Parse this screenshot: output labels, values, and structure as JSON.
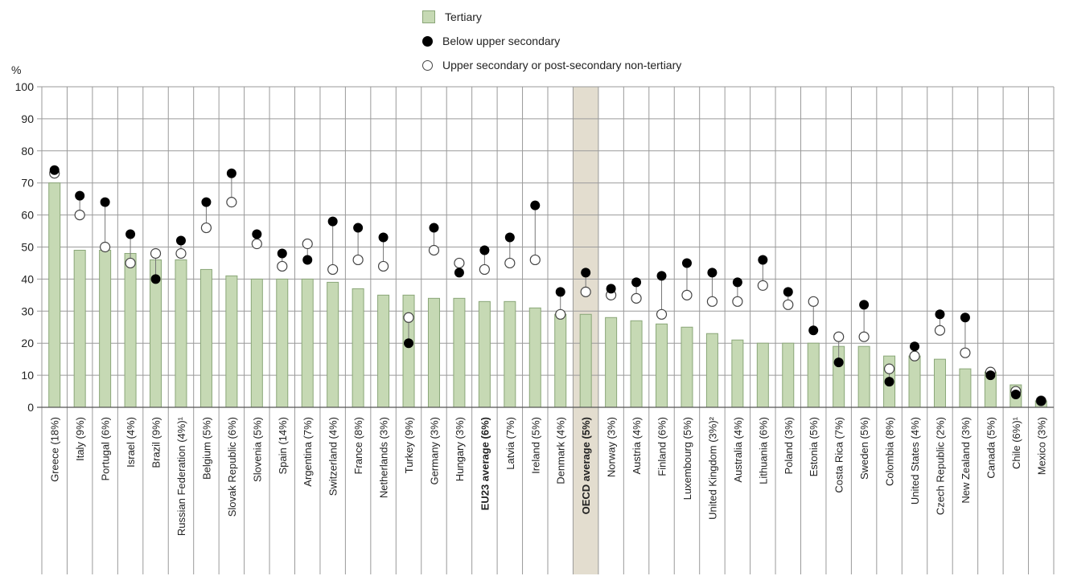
{
  "chart_data": {
    "type": "bar",
    "ylabel": "%",
    "ylim": [
      0,
      100
    ],
    "yticks": [
      "0",
      "10",
      "20",
      "30",
      "40",
      "50",
      "60",
      "70",
      "80",
      "90",
      "100"
    ],
    "grid": true,
    "legend_position": "top-center",
    "categories": [
      "Greece (18%)",
      "Italy (9%)",
      "Portugal (6%)",
      "Israel (4%)",
      "Brazil (9%)",
      "Russian Federation (4%)¹",
      "Belgium (5%)",
      "Slovak Republic (6%)",
      "Slovenia (5%)",
      "Spain (14%)",
      "Argentina (7%)",
      "Switzerland (4%)",
      "France (8%)",
      "Netherlands (3%)",
      "Turkey (9%)",
      "Germany (3%)",
      "Hungary (3%)",
      "EU23 average (6%)",
      "Latvia (7%)",
      "Ireland (5%)",
      "Denmark (4%)",
      "OECD average (5%)",
      "Norway (3%)",
      "Austria (4%)",
      "Finland (6%)",
      "Luxembourg (5%)",
      "United Kingdom (3%)²",
      "Australia (4%)",
      "Lithuania (6%)",
      "Poland (3%)",
      "Estonia (5%)",
      "Costa Rica (7%)",
      "Sweden (5%)",
      "Colombia (8%)",
      "United States (4%)",
      "Czech Republic (2%)",
      "New Zealand (3%)",
      "Canada (5%)",
      "Chile (6%)¹",
      "Mexico (3%)"
    ],
    "bold_categories": [
      "EU23 average (6%)",
      "OECD average (5%)"
    ],
    "highlight_category": "OECD average (5%)",
    "series": [
      {
        "name": "Tertiary",
        "kind": "bar",
        "values": [
          70,
          49,
          49,
          48,
          46,
          46,
          43,
          41,
          40,
          40,
          40,
          39,
          37,
          35,
          35,
          34,
          34,
          33,
          33,
          31,
          29,
          29,
          28,
          27,
          26,
          25,
          23,
          21,
          20,
          20,
          20,
          19,
          19,
          16,
          16,
          15,
          12,
          11,
          7,
          2
        ]
      },
      {
        "name": "Below upper secondary",
        "kind": "filled-dot",
        "values": [
          74,
          66,
          64,
          54,
          40,
          52,
          64,
          73,
          54,
          48,
          46,
          58,
          56,
          53,
          20,
          56,
          42,
          49,
          53,
          63,
          36,
          42,
          37,
          39,
          41,
          45,
          42,
          39,
          46,
          36,
          24,
          14,
          32,
          8,
          19,
          29,
          28,
          10,
          4,
          2
        ]
      },
      {
        "name": "Upper secondary or post-secondary non-tertiary",
        "kind": "open-dot",
        "values": [
          73,
          60,
          50,
          45,
          48,
          48,
          56,
          64,
          51,
          44,
          51,
          43,
          46,
          44,
          28,
          49,
          45,
          43,
          45,
          46,
          29,
          36,
          35,
          34,
          29,
          35,
          33,
          33,
          38,
          32,
          33,
          22,
          22,
          12,
          16,
          24,
          17,
          11,
          5,
          2
        ]
      }
    ]
  },
  "colors": {
    "bar_fill": "#c6d9b4",
    "bar_stroke": "#8aa678",
    "highlight": "#e3ddcf",
    "grid": "#9a9a9a",
    "dot_fill": "#000000",
    "open_dot_fill": "#ffffff"
  }
}
